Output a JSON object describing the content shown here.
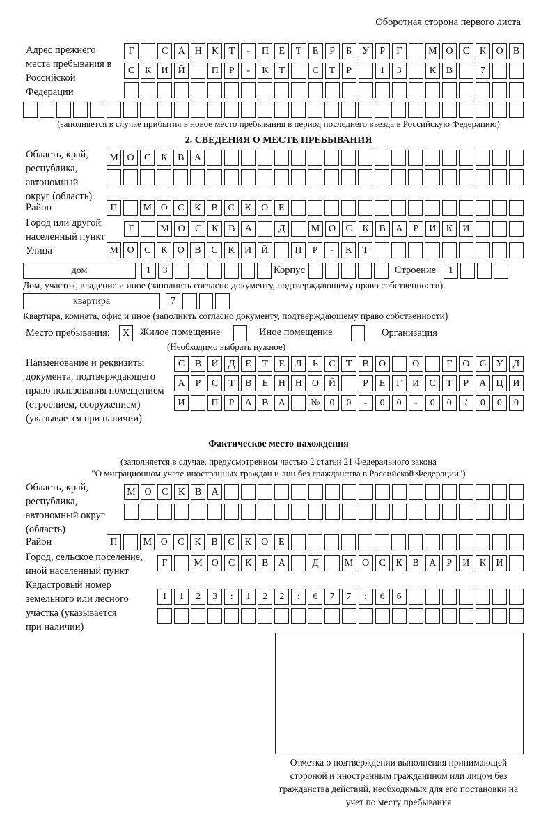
{
  "header": "Оборотная сторона первого листа",
  "prev_address": {
    "label": "Адрес прежнего места пребывания в Российской Федерации",
    "rows": [
      [
        "Г",
        "",
        "С",
        "А",
        "Н",
        "К",
        "Т",
        "-",
        "П",
        "Е",
        "Т",
        "Е",
        "Р",
        "Б",
        "У",
        "Р",
        "Г",
        "",
        "М",
        "О",
        "С",
        "К",
        "О",
        "В"
      ],
      [
        "С",
        "К",
        "И",
        "Й",
        "",
        "П",
        "Р",
        "-",
        "К",
        "Т",
        "",
        "С",
        "Т",
        "Р",
        "",
        "1",
        "3",
        "",
        "К",
        "В",
        "",
        "7",
        "",
        ""
      ],
      [
        "",
        "",
        "",
        "",
        "",
        "",
        "",
        "",
        "",
        "",
        "",
        "",
        "",
        "",
        "",
        "",
        "",
        "",
        "",
        "",
        "",
        "",
        "",
        ""
      ],
      [
        "",
        "",
        "",
        "",
        "",
        "",
        "",
        "",
        "",
        "",
        "",
        "",
        "",
        "",
        "",
        "",
        "",
        "",
        "",
        "",
        "",
        "",
        "",
        "",
        "",
        "",
        "",
        "",
        "",
        ""
      ]
    ],
    "note": "(заполняется в случае прибытия в новое место пребывания в период последнего въезда в Российскую Федерацию)"
  },
  "section2": {
    "title": "2. СВЕДЕНИЯ О МЕСТЕ ПРЕБЫВАНИЯ",
    "oblast_label": "Область, край, республика, автономный округ (область)",
    "oblast_rows": [
      [
        "М",
        "О",
        "С",
        "К",
        "В",
        "А",
        "",
        "",
        "",
        "",
        "",
        "",
        "",
        "",
        "",
        "",
        "",
        "",
        "",
        "",
        "",
        "",
        "",
        "",
        ""
      ],
      [
        "",
        "",
        "",
        "",
        "",
        "",
        "",
        "",
        "",
        "",
        "",
        "",
        "",
        "",
        "",
        "",
        "",
        "",
        "",
        "",
        "",
        "",
        "",
        "",
        ""
      ]
    ],
    "raion_label": "Район",
    "raion": [
      "П",
      "",
      "М",
      "О",
      "С",
      "К",
      "В",
      "С",
      "К",
      "О",
      "Е",
      "",
      "",
      "",
      "",
      "",
      "",
      "",
      "",
      "",
      "",
      "",
      "",
      "",
      ""
    ],
    "city_label": "Город или другой населенный пункт",
    "city": [
      "Г",
      "",
      "М",
      "О",
      "С",
      "К",
      "В",
      "А",
      "",
      "Д",
      "",
      "М",
      "О",
      "С",
      "К",
      "В",
      "А",
      "Р",
      "И",
      "К",
      "И",
      "",
      "",
      ""
    ],
    "street_label": "Улица",
    "street": [
      "М",
      "О",
      "С",
      "К",
      "О",
      "В",
      "С",
      "К",
      "И",
      "Й",
      "",
      "П",
      "Р",
      "-",
      "К",
      "Т",
      "",
      "",
      "",
      "",
      "",
      "",
      "",
      "",
      ""
    ],
    "house_type": "дом",
    "house": [
      "1",
      "3",
      "",
      "",
      "",
      "",
      "",
      ""
    ],
    "korpus_label": "Корпус",
    "korpus": [
      "",
      "",
      "",
      "",
      ""
    ],
    "stroenie_label": "Строение",
    "stroenie": [
      "1",
      "",
      "",
      ""
    ],
    "house_note": "Дом, участок, владение и иное (заполнить согласно документу, подтверждающему право собственности)",
    "flat_type": "квартира",
    "flat": [
      "7",
      "",
      "",
      ""
    ],
    "flat_note": "Квартира, комната, офис и иное (заполнить согласно документу, подтверждающему право собственности)",
    "stay_label": "Место пребывания:",
    "stay_options": [
      {
        "label": "Жилое помещение",
        "mark": "X"
      },
      {
        "label": "Иное помещение",
        "mark": ""
      },
      {
        "label": "Организация",
        "mark": ""
      }
    ],
    "stay_note": "(Необходимо выбрать нужное)",
    "doc_label": "Наименование и реквизиты документа, подтверждающего право пользования помещением (строением, сооружением) (указывается при наличии)",
    "doc_rows": [
      [
        "С",
        "В",
        "И",
        "Д",
        "Е",
        "Т",
        "Е",
        "Л",
        "Ь",
        "С",
        "Т",
        "В",
        "О",
        "",
        "О",
        "",
        "Г",
        "О",
        "С",
        "У",
        "Д"
      ],
      [
        "А",
        "Р",
        "С",
        "Т",
        "В",
        "Е",
        "Н",
        "Н",
        "О",
        "Й",
        "",
        "Р",
        "Е",
        "Г",
        "И",
        "С",
        "Т",
        "Р",
        "А",
        "Ц",
        "И"
      ],
      [
        "И",
        "",
        "П",
        "Р",
        "А",
        "В",
        "А",
        "",
        "№",
        "0",
        "0",
        "-",
        "0",
        "0",
        "-",
        "0",
        "0",
        "/",
        "0",
        "0",
        "0"
      ]
    ]
  },
  "actual": {
    "title": "Фактическое место нахождения",
    "note1": "(заполняется в случае, предусмотренном частью 2 статьи 21 Федерального закона",
    "note2": "\"О миграционном учете иностранных граждан и лиц без гражданства в Российской Федерации\")",
    "oblast_label": "Область, край, республика, автономный округ (область)",
    "oblast_rows": [
      [
        "М",
        "О",
        "С",
        "К",
        "В",
        "А",
        "",
        "",
        "",
        "",
        "",
        "",
        "",
        "",
        "",
        "",
        "",
        "",
        "",
        "",
        "",
        "",
        "",
        ""
      ],
      [
        "",
        "",
        "",
        "",
        "",
        "",
        "",
        "",
        "",
        "",
        "",
        "",
        "",
        "",
        "",
        "",
        "",
        "",
        "",
        "",
        "",
        "",
        "",
        ""
      ]
    ],
    "raion_label": "Район",
    "raion": [
      "П",
      "",
      "М",
      "О",
      "С",
      "К",
      "В",
      "С",
      "К",
      "О",
      "Е",
      "",
      "",
      "",
      "",
      "",
      "",
      "",
      "",
      "",
      "",
      "",
      "",
      "",
      ""
    ],
    "city_label": "Город, сельское поселение, иной населенный пункт",
    "city": [
      "Г",
      "",
      "М",
      "О",
      "С",
      "К",
      "В",
      "А",
      "",
      "Д",
      "",
      "М",
      "О",
      "С",
      "К",
      "В",
      "А",
      "Р",
      "И",
      "К",
      "И",
      ""
    ],
    "cadastre_label": "Кадастровый номер земельного или лесного участка (указывается при наличии)",
    "cadastre_rows": [
      [
        "1",
        "1",
        "2",
        "3",
        ":",
        "1",
        "2",
        "2",
        ":",
        "6",
        "7",
        "7",
        ":",
        "6",
        "6",
        "",
        "",
        "",
        "",
        "",
        "",
        ""
      ],
      [
        "",
        "",
        "",
        "",
        "",
        "",
        "",
        "",
        "",
        "",
        "",
        "",
        "",
        "",
        "",
        "",
        "",
        "",
        "",
        "",
        "",
        ""
      ]
    ]
  },
  "confirmation": {
    "caption": "Отметка о подтверждении выполнения принимающей стороной и иностранным гражданином или лицом без гражданства действий, необходимых для его постановки на учет по месту пребывания"
  }
}
